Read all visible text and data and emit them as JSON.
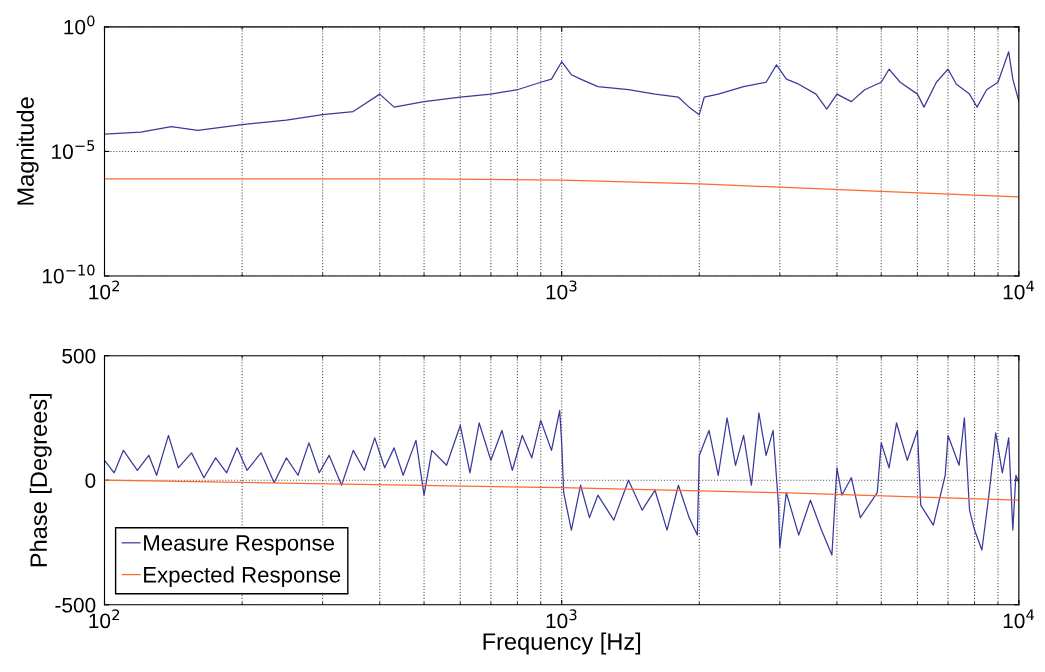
{
  "chart_data": [
    {
      "type": "line",
      "ylabel": "Magnitude",
      "log": "xy",
      "grid": true,
      "line_style": "solid",
      "marker": "none",
      "xlim": [
        100,
        10000
      ],
      "xticks": [
        {
          "value": 100,
          "label": "10$^{2}$"
        },
        {
          "value": 1000,
          "label": "10$^{3}$"
        },
        {
          "value": 10000,
          "label": "10$^{4}$"
        }
      ],
      "ylim": [
        1e-10,
        1
      ],
      "yticks": [
        {
          "value": 1e-10,
          "label": "10$^{−10}$"
        },
        {
          "value": 1e-05,
          "label": "10$^{−5}$"
        },
        {
          "value": 1,
          "label": "10$^{0}$"
        }
      ],
      "series": [
        {
          "color": "#3a3a9a",
          "x": [
            100,
            120,
            140,
            160,
            200,
            250,
            300,
            350,
            400,
            430,
            500,
            600,
            700,
            800,
            900,
            950,
            1000,
            1050,
            1100,
            1200,
            1400,
            1600,
            1800,
            1900,
            2000,
            2050,
            2200,
            2500,
            2800,
            2950,
            3100,
            3300,
            3600,
            3800,
            4000,
            4300,
            4600,
            5000,
            5200,
            5500,
            6000,
            6200,
            6600,
            7000,
            7300,
            7800,
            8100,
            8500,
            9000,
            9500,
            9700,
            10000
          ],
          "values": [
            5e-05,
            6e-05,
            0.0001,
            7e-05,
            0.00012,
            0.00018,
            0.0003,
            0.0004,
            0.002,
            0.0006,
            0.001,
            0.0015,
            0.002,
            0.003,
            0.006,
            0.008,
            0.04,
            0.012,
            0.008,
            0.004,
            0.003,
            0.002,
            0.0015,
            0.0006,
            0.0003,
            0.0015,
            0.002,
            0.004,
            0.006,
            0.03,
            0.008,
            0.005,
            0.002,
            0.0005,
            0.002,
            0.001,
            0.003,
            0.006,
            0.02,
            0.006,
            0.002,
            0.0006,
            0.006,
            0.02,
            0.005,
            0.002,
            0.0006,
            0.003,
            0.006,
            0.1,
            0.008,
            0.001
          ]
        },
        {
          "color": "#ff6a30",
          "x": [
            100,
            500,
            1000,
            2000,
            5000,
            10000
          ],
          "values": [
            8e-07,
            8e-07,
            7e-07,
            5e-07,
            2.5e-07,
            1.5e-07
          ]
        }
      ]
    },
    {
      "type": "line",
      "ylabel": "Phase [Degrees]",
      "xlabel": "Frequency [Hz]",
      "log": "x",
      "grid": true,
      "legend": "bottom left",
      "line_style": "solid",
      "marker": "none",
      "xlim": [
        100,
        10000
      ],
      "xticks": [
        {
          "value": 100,
          "label": "10$^{2}$"
        },
        {
          "value": 1000,
          "label": "10$^{3}$"
        },
        {
          "value": 10000,
          "label": "10$^{4}$"
        }
      ],
      "ylim": [
        -500,
        500
      ],
      "yticks": [
        {
          "value": -500,
          "label": "-500"
        },
        0,
        500
      ],
      "series": [
        {
          "name": "Measure Response",
          "color": "#3a3a9a",
          "x": [
            100,
            105,
            110,
            118,
            125,
            130,
            138,
            145,
            155,
            165,
            175,
            185,
            195,
            205,
            220,
            235,
            250,
            265,
            280,
            295,
            310,
            330,
            350,
            370,
            390,
            410,
            430,
            450,
            480,
            500,
            520,
            560,
            600,
            630,
            660,
            700,
            740,
            780,
            820,
            860,
            900,
            950,
            990,
            1000,
            1010,
            1050,
            1100,
            1150,
            1200,
            1300,
            1400,
            1500,
            1600,
            1700,
            1800,
            1900,
            1980,
            2000,
            2100,
            2200,
            2300,
            2400,
            2500,
            2600,
            2700,
            2800,
            2900,
            2980,
            3000,
            3100,
            3300,
            3500,
            3700,
            3900,
            4000,
            4100,
            4300,
            4500,
            4900,
            5000,
            5200,
            5400,
            5700,
            6000,
            6100,
            6500,
            6900,
            7000,
            7400,
            7600,
            7800,
            8000,
            8300,
            8600,
            8900,
            9200,
            9500,
            9700,
            9850,
            10000
          ],
          "values": [
            80,
            30,
            120,
            40,
            100,
            20,
            180,
            50,
            110,
            10,
            90,
            30,
            130,
            40,
            110,
            -10,
            90,
            20,
            150,
            30,
            100,
            -20,
            120,
            40,
            170,
            50,
            130,
            20,
            160,
            -60,
            120,
            60,
            220,
            30,
            230,
            80,
            200,
            40,
            180,
            90,
            240,
            120,
            280,
            150,
            -50,
            -200,
            -20,
            -150,
            -60,
            -160,
            0,
            -120,
            -40,
            -200,
            -20,
            -150,
            -220,
            100,
            200,
            20,
            250,
            60,
            180,
            -20,
            270,
            100,
            200,
            -100,
            -270,
            -50,
            -220,
            -80,
            -200,
            -300,
            50,
            -60,
            10,
            -150,
            -50,
            150,
            50,
            230,
            80,
            200,
            -100,
            -180,
            20,
            180,
            60,
            250,
            -120,
            -200,
            -280,
            -60,
            190,
            30,
            170,
            -200,
            20,
            -10
          ]
        },
        {
          "name": "Expected Response",
          "color": "#ff6a30",
          "x": [
            100,
            1000,
            3000,
            10000
          ],
          "values": [
            0,
            -30,
            -50,
            -80
          ]
        }
      ]
    }
  ]
}
